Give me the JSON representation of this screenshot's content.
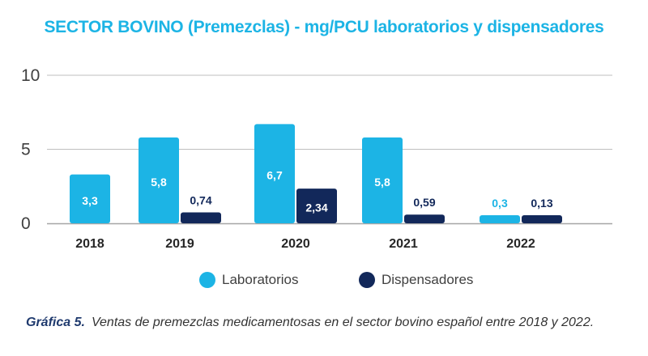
{
  "title": "SECTOR BOVINO (Premezclas) - mg/PCU laboratorios y dispensadores",
  "caption": {
    "label": "Gráfica 5.",
    "text": "Ventas de premezclas medicamentosas en el sector bovino español entre 2018  y 2022."
  },
  "colors": {
    "laboratorios": "#1CB4E5",
    "dispensadores": "#12285A",
    "title": "#1CB4E5",
    "gridline": "#BFBFBF"
  },
  "chart_data": {
    "type": "bar",
    "title": "SECTOR BOVINO (Premezclas) - mg/PCU laboratorios y dispensadores",
    "categories": [
      "2018",
      "2019",
      "2020",
      "2021",
      "2022"
    ],
    "series": [
      {
        "name": "Laboratorios",
        "values": [
          3.3,
          5.8,
          6.7,
          5.8,
          0.3
        ],
        "labels": [
          "3,3",
          "5,8",
          "6,7",
          "5,8",
          "0,3"
        ]
      },
      {
        "name": "Dispensadores",
        "values": [
          null,
          0.74,
          2.34,
          0.59,
          0.13
        ],
        "labels": [
          "",
          "0,74",
          "2,34",
          "0,59",
          "0,13"
        ]
      }
    ],
    "yticks": [
      "0",
      "5",
      "10"
    ],
    "ylim": [
      0,
      10
    ],
    "grid": true,
    "legend_position": "bottom-center"
  }
}
